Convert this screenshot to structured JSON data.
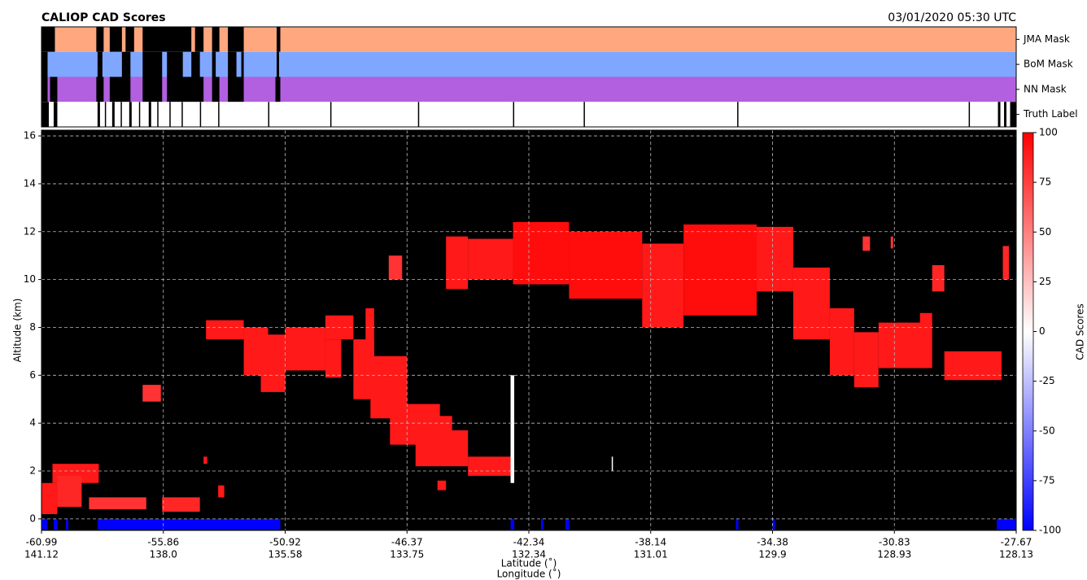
{
  "chart_data": {
    "type": "curtain",
    "title": "CALIOP CAD Scores",
    "subtitle": "03/01/2020 05:30 UTC",
    "y_label": "Altitude (km)",
    "x_label": "Latitude (˚)",
    "x2_label": "Longitude (˚)",
    "colorbar_label": "CAD Scores",
    "xlim": [
      0,
      8
    ],
    "xticks": [
      -60.99,
      -55.86,
      -50.92,
      -46.37,
      -42.34,
      -38.14,
      -34.38,
      -30.83,
      -27.67
    ],
    "x2ticks": [
      141.12,
      {
        "value": 138,
        "label": "138.0"
      },
      135.58,
      133.75,
      132.34,
      131.01,
      129.9,
      128.93,
      128.13
    ],
    "ylim": [
      -0.48,
      16.24
    ],
    "yticks": [
      0,
      2,
      4,
      6,
      8,
      10,
      12,
      14,
      16
    ],
    "clim": [
      -100,
      100
    ],
    "cticks": [
      -100,
      -75,
      -50,
      -25,
      0,
      25,
      50,
      75,
      100
    ],
    "grid": true,
    "background": "#000000",
    "mask_color": "#000000",
    "masks": [
      {
        "name": "JMA Mask",
        "color": "#ffa77f",
        "segments": [
          [
            0,
            0.11
          ],
          [
            0.45,
            0.51
          ],
          [
            0.56,
            0.66
          ],
          [
            0.69,
            0.76
          ],
          [
            0.83,
            1.23
          ],
          [
            1.26,
            1.33
          ],
          [
            1.4,
            1.46
          ],
          [
            1.53,
            1.66
          ],
          [
            1.93,
            1.96
          ]
        ]
      },
      {
        "name": "BoM Mask",
        "color": "#7fa7ff",
        "segments": [
          [
            0,
            0.05
          ],
          [
            0.46,
            0.5
          ],
          [
            0.66,
            0.73
          ],
          [
            0.83,
            0.99
          ],
          [
            1.03,
            1.16
          ],
          [
            1.23,
            1.3
          ],
          [
            1.4,
            1.43
          ],
          [
            1.53,
            1.6
          ],
          [
            1.64,
            1.66
          ],
          [
            1.93,
            1.95
          ]
        ]
      },
      {
        "name": "NN Mask",
        "color": "#b25fe0",
        "segments": [
          [
            0,
            0.05
          ],
          [
            0.07,
            0.13
          ],
          [
            0.45,
            0.51
          ],
          [
            0.56,
            0.73
          ],
          [
            0.83,
            0.99
          ],
          [
            1.03,
            1.33
          ],
          [
            1.4,
            1.46
          ],
          [
            1.53,
            1.66
          ],
          [
            1.92,
            1.96
          ]
        ]
      },
      {
        "name": "Truth Label",
        "color": "#ffffff",
        "segments": [
          [
            0,
            0.06
          ],
          [
            0.1,
            0.13
          ],
          [
            0.46,
            0.48
          ],
          [
            0.52,
            0.53
          ],
          [
            0.58,
            0.6
          ],
          [
            0.65,
            0.66
          ],
          [
            0.72,
            0.74
          ],
          [
            0.8,
            0.81
          ],
          [
            0.88,
            0.9
          ],
          [
            0.95,
            0.96
          ],
          [
            1.05,
            1.06
          ],
          [
            1.15,
            1.16
          ],
          [
            1.3,
            1.31
          ],
          [
            1.45,
            1.46
          ],
          [
            1.86,
            1.87
          ],
          [
            2.37,
            2.38
          ],
          [
            3.09,
            3.1
          ],
          [
            3.87,
            3.88
          ],
          [
            4.45,
            4.46
          ],
          [
            5.71,
            5.72
          ],
          [
            7.61,
            7.62
          ],
          [
            7.85,
            7.87
          ],
          [
            7.9,
            7.92
          ],
          [
            7.95,
            8
          ]
        ]
      }
    ],
    "layers": [
      {
        "x": [
          0,
          0.13
        ],
        "alt": [
          0.2,
          1.5
        ],
        "score": 90
      },
      {
        "x": [
          0.09,
          0.47
        ],
        "alt": [
          1.5,
          2.3
        ],
        "score": 90
      },
      {
        "x": [
          0.13,
          0.33
        ],
        "alt": [
          0.5,
          1.8
        ],
        "score": 85
      },
      {
        "x": [
          0.39,
          0.86
        ],
        "alt": [
          0.4,
          0.9
        ],
        "score": 80
      },
      {
        "x": [
          0.99,
          1.3
        ],
        "alt": [
          0.3,
          0.9
        ],
        "score": 85
      },
      {
        "x": [
          1.45,
          1.5
        ],
        "alt": [
          0.9,
          1.4
        ],
        "score": 90
      },
      {
        "x": [
          1.33,
          1.36
        ],
        "alt": [
          2.3,
          2.6
        ],
        "score": 90
      },
      {
        "x": [
          0.83,
          0.98
        ],
        "alt": [
          4.9,
          5.6
        ],
        "score": 80
      },
      {
        "x": [
          1.35,
          1.66
        ],
        "alt": [
          7.5,
          8.3
        ],
        "score": 90
      },
      {
        "x": [
          1.66,
          1.86
        ],
        "alt": [
          6.0,
          8.0
        ],
        "score": 90
      },
      {
        "x": [
          1.8,
          2.0
        ],
        "alt": [
          5.3,
          7.7
        ],
        "score": 90
      },
      {
        "x": [
          2.0,
          2.33
        ],
        "alt": [
          6.2,
          8.0
        ],
        "score": 90
      },
      {
        "x": [
          2.33,
          2.56
        ],
        "alt": [
          7.5,
          8.5
        ],
        "score": 90
      },
      {
        "x": [
          2.33,
          2.46
        ],
        "alt": [
          5.9,
          7.5
        ],
        "score": 90
      },
      {
        "x": [
          2.56,
          2.73
        ],
        "alt": [
          5.0,
          7.5
        ],
        "score": 90
      },
      {
        "x": [
          2.66,
          2.73
        ],
        "alt": [
          6.8,
          8.8
        ],
        "score": 90
      },
      {
        "x": [
          2.7,
          3.0
        ],
        "alt": [
          4.2,
          6.8
        ],
        "score": 90
      },
      {
        "x": [
          2.86,
          3.27
        ],
        "alt": [
          3.1,
          4.8
        ],
        "score": 90
      },
      {
        "x": [
          3.07,
          3.5
        ],
        "alt": [
          2.2,
          3.7
        ],
        "score": 90
      },
      {
        "x": [
          3.23,
          3.37
        ],
        "alt": [
          3.3,
          4.3
        ],
        "score": 90
      },
      {
        "x": [
          3.5,
          3.87
        ],
        "alt": [
          1.8,
          2.6
        ],
        "score": 90
      },
      {
        "x": [
          3.25,
          3.32
        ],
        "alt": [
          1.2,
          1.6
        ],
        "score": 90
      },
      {
        "x": [
          2.85,
          2.96
        ],
        "alt": [
          10.0,
          11.0
        ],
        "score": 80
      },
      {
        "x": [
          3.32,
          3.5
        ],
        "alt": [
          9.6,
          11.8
        ],
        "score": 90
      },
      {
        "x": [
          3.5,
          3.87
        ],
        "alt": [
          10.0,
          11.7
        ],
        "score": 90
      },
      {
        "x": [
          3.87,
          4.33
        ],
        "alt": [
          9.8,
          12.4
        ],
        "score": 95
      },
      {
        "x": [
          4.33,
          4.93
        ],
        "alt": [
          9.2,
          12.0
        ],
        "score": 95
      },
      {
        "x": [
          4.93,
          5.27
        ],
        "alt": [
          8.0,
          11.5
        ],
        "score": 90
      },
      {
        "x": [
          5.27,
          5.87
        ],
        "alt": [
          8.5,
          12.3
        ],
        "score": 95
      },
      {
        "x": [
          5.87,
          6.17
        ],
        "alt": [
          9.5,
          12.2
        ],
        "score": 90
      },
      {
        "x": [
          6.17,
          6.47
        ],
        "alt": [
          7.5,
          10.5
        ],
        "score": 90
      },
      {
        "x": [
          6.47,
          6.67
        ],
        "alt": [
          6.0,
          8.8
        ],
        "score": 90
      },
      {
        "x": [
          6.67,
          6.87
        ],
        "alt": [
          5.5,
          7.8
        ],
        "score": 90
      },
      {
        "x": [
          6.87,
          7.31
        ],
        "alt": [
          6.3,
          8.2
        ],
        "score": 90
      },
      {
        "x": [
          7.21,
          7.31
        ],
        "alt": [
          8.0,
          8.6
        ],
        "score": 90
      },
      {
        "x": [
          7.31,
          7.41
        ],
        "alt": [
          9.5,
          10.6
        ],
        "score": 85
      },
      {
        "x": [
          7.41,
          7.88
        ],
        "alt": [
          5.8,
          7.0
        ],
        "score": 90
      },
      {
        "x": [
          7.89,
          7.94
        ],
        "alt": [
          10.0,
          11.4
        ],
        "score": 85
      },
      {
        "x": [
          6.74,
          6.8
        ],
        "alt": [
          11.2,
          11.8
        ],
        "score": 80
      },
      {
        "x": [
          6.97,
          6.99
        ],
        "alt": [
          11.3,
          11.8
        ],
        "score": 80
      },
      {
        "x": [
          3.85,
          3.88
        ],
        "alt": [
          1.5,
          6.0
        ],
        "score": 0
      },
      {
        "x": [
          4.68,
          4.69
        ],
        "alt": [
          2.0,
          2.6
        ],
        "score": 0
      },
      {
        "x": [
          0,
          0.05
        ],
        "alt": [
          -0.45,
          0
        ],
        "score": -100
      },
      {
        "x": [
          0.1,
          0.13
        ],
        "alt": [
          -0.45,
          0
        ],
        "score": -100
      },
      {
        "x": [
          0.2,
          0.22
        ],
        "alt": [
          -0.45,
          0
        ],
        "score": -100
      },
      {
        "x": [
          0.46,
          1.96
        ],
        "alt": [
          -0.45,
          0
        ],
        "score": -100
      },
      {
        "x": [
          3.85,
          3.88
        ],
        "alt": [
          -0.45,
          0
        ],
        "score": -100
      },
      {
        "x": [
          4.1,
          4.12
        ],
        "alt": [
          -0.45,
          0
        ],
        "score": -100
      },
      {
        "x": [
          4.3,
          4.33
        ],
        "alt": [
          -0.45,
          0
        ],
        "score": -100
      },
      {
        "x": [
          5.7,
          5.72
        ],
        "alt": [
          -0.45,
          0
        ],
        "score": -100
      },
      {
        "x": [
          6.0,
          6.02
        ],
        "alt": [
          -0.45,
          0
        ],
        "score": -100
      },
      {
        "x": [
          7.84,
          8
        ],
        "alt": [
          -0.45,
          0
        ],
        "score": -100
      }
    ]
  }
}
